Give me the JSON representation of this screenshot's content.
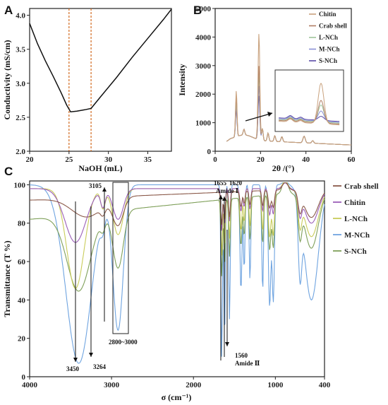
{
  "chart_data": [
    {
      "panel": "A",
      "type": "line",
      "xlabel": "NaOH (mL)",
      "ylabel": "Conductivity (mS/cm)",
      "xlim": [
        20,
        38
      ],
      "ylim": [
        2.0,
        4.1
      ],
      "xticks": [
        "20",
        "25",
        "30",
        "35"
      ],
      "yticks": [
        "2.0",
        "2.5",
        "3.0",
        "3.5",
        "4.0"
      ],
      "vlines": [
        25,
        27.8
      ],
      "vline_color": "#d2691e",
      "series": [
        {
          "color": "#111111",
          "x": [
            20,
            21,
            22,
            23,
            24,
            24.7,
            25.2,
            26,
            27,
            27.8,
            29,
            31,
            33,
            35,
            37,
            38
          ],
          "y": [
            3.88,
            3.58,
            3.33,
            3.1,
            2.86,
            2.68,
            2.58,
            2.59,
            2.61,
            2.63,
            2.8,
            3.08,
            3.38,
            3.66,
            3.94,
            4.09
          ]
        }
      ]
    },
    {
      "panel": "B",
      "type": "line",
      "xlabel": "2θ /(°)",
      "ylabel": "Intensity",
      "xlim": [
        0,
        60
      ],
      "ylim": [
        0,
        5000
      ],
      "xticks": [
        "0",
        "20",
        "40",
        "60"
      ],
      "yticks": [
        "0",
        "1000",
        "2000",
        "3000",
        "4000",
        "5000"
      ],
      "legend": [
        "Chitin",
        "Crab shell",
        "L-NCh",
        "M-NCh",
        "S-NCh"
      ],
      "colors": [
        "#c9a27e",
        "#b07e64",
        "#9ec49a",
        "#8a8fd6",
        "#5a4aa6"
      ],
      "peak_heights": [
        4280,
        3150,
        2850,
        2450,
        2100
      ],
      "low_peak_heights": [
        2020,
        1800,
        1650,
        1500,
        1380
      ],
      "inset_x": [
        38,
        60
      ],
      "inset_y": [
        400,
        2800
      ]
    },
    {
      "panel": "C",
      "type": "line",
      "xlabel": "σ (cm⁻¹)",
      "ylabel": "Transmittance (T %)",
      "xlim": [
        4000,
        400
      ],
      "ylim": [
        0,
        102
      ],
      "xticks": [
        "4000",
        "3000",
        "2000",
        "1000",
        "400"
      ],
      "yticks": [
        "0",
        "20",
        "40",
        "60",
        "80",
        "100"
      ],
      "legend": [
        "Crab shell",
        "Chitin",
        "L-NCh",
        "M-NCh",
        "S-NCh"
      ],
      "colors": [
        "#8b5a4a",
        "#9b5fb8",
        "#c9cc5a",
        "#6fa4e0",
        "#7fa05a"
      ],
      "annotations": {
        "a3450": "3450",
        "a3264": "3264",
        "a3105": "3105",
        "a2800": "2800~3000",
        "a1655": "1655",
        "a1620": "1620",
        "amide1": "Amide Ⅰ",
        "a1560": "1560",
        "amide2": "Amide Ⅱ"
      }
    }
  ]
}
